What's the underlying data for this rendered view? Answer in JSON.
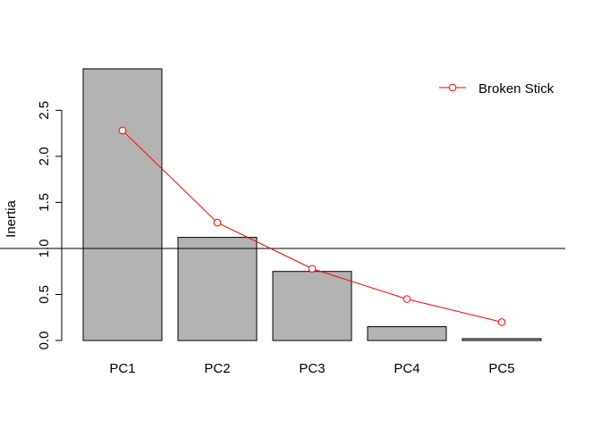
{
  "chart_data": {
    "type": "bar",
    "title": "",
    "xlabel": "",
    "ylabel": "Inertia",
    "categories": [
      "PC1",
      "PC2",
      "PC3",
      "PC4",
      "PC5"
    ],
    "series": [
      {
        "type": "bar",
        "values": [
          2.95,
          1.12,
          0.75,
          0.15,
          0.02
        ]
      },
      {
        "type": "line",
        "name": "Broken Stick",
        "values": [
          2.28,
          1.28,
          0.78,
          0.45,
          0.2
        ]
      }
    ],
    "reference_line": 1.0,
    "ylim": [
      0,
      2.95
    ],
    "yticks": [
      "0.0",
      "0.5",
      "1.0",
      "1.5",
      "2.0",
      "2.5"
    ],
    "grid": false,
    "legend_position": "top-right",
    "colors": {
      "bar_fill": "#b3b3b3",
      "bar_stroke": "#000000",
      "line": "#ff0000",
      "reference": "#000000"
    }
  }
}
